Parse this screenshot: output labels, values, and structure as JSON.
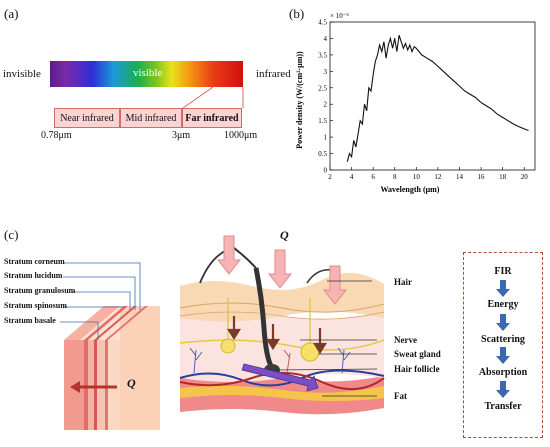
{
  "panel_a": {
    "label": "(a)",
    "left_word": "invisible",
    "center_word": "visible",
    "right_word": "infrared",
    "bands": [
      "Near infrared",
      "Mid infrared",
      "Far infrared"
    ],
    "ticks": [
      "0.78μm",
      "3μm",
      "1000μm"
    ]
  },
  "panel_b": {
    "label": "(b)"
  },
  "panel_c": {
    "label": "(c)",
    "q_top": "Q",
    "q_left": "Q",
    "layers": [
      "Stratum corneum",
      "Stratum lucidum",
      "Stratum granulosum",
      "Stratum spinosum",
      "Stratum basale"
    ],
    "skin_labels": [
      "Hair",
      "Nerve",
      "Sweat gland",
      "Hair follicle",
      "Fat"
    ],
    "flow": [
      "FIR",
      "Energy",
      "Scattering",
      "Absorption",
      "Transfer"
    ]
  },
  "chart_data": {
    "type": "line",
    "title": "",
    "xlabel": "Wavelength (μm)",
    "ylabel": "Power density (W/(cm²·μm))",
    "y_multiplier": "× 10⁻⁵",
    "xlim": [
      2,
      21
    ],
    "ylim": [
      0,
      4.5
    ],
    "xticks": [
      2,
      4,
      6,
      8,
      10,
      12,
      14,
      16,
      18,
      20
    ],
    "yticks": [
      0,
      0.5,
      1.0,
      1.5,
      2.0,
      2.5,
      3.0,
      3.5,
      4.0,
      4.5
    ],
    "grid": false,
    "series": [
      {
        "x": [
          3.6,
          3.8,
          4.0,
          4.2,
          4.4,
          4.6,
          4.8,
          5.0,
          5.2,
          5.4,
          5.6,
          5.8,
          6.0,
          6.2,
          6.4,
          6.6,
          6.8,
          7.0,
          7.2,
          7.4,
          7.6,
          7.8,
          8.0,
          8.2,
          8.4,
          8.6,
          8.8,
          9.0,
          9.2,
          9.4,
          9.6,
          9.8,
          10.0,
          10.5,
          11.0,
          11.5,
          12.0,
          12.5,
          13.0,
          13.5,
          14.0,
          14.5,
          15.0,
          15.5,
          16.0,
          16.5,
          17.0,
          17.5,
          18.0,
          18.5,
          19.0,
          19.5,
          20.0,
          20.4
        ],
        "y": [
          0.25,
          0.5,
          0.4,
          0.9,
          0.7,
          1.1,
          1.5,
          1.4,
          2.0,
          1.8,
          2.5,
          2.4,
          2.9,
          3.3,
          3.5,
          3.8,
          3.6,
          3.9,
          3.4,
          3.8,
          4.0,
          3.7,
          4.0,
          3.6,
          4.1,
          3.9,
          3.7,
          3.85,
          3.65,
          3.8,
          3.6,
          3.75,
          3.7,
          3.5,
          3.4,
          3.3,
          3.15,
          3.0,
          2.85,
          2.7,
          2.55,
          2.4,
          2.3,
          2.2,
          2.05,
          1.95,
          1.85,
          1.7,
          1.6,
          1.5,
          1.4,
          1.32,
          1.25,
          1.2
        ]
      }
    ]
  }
}
